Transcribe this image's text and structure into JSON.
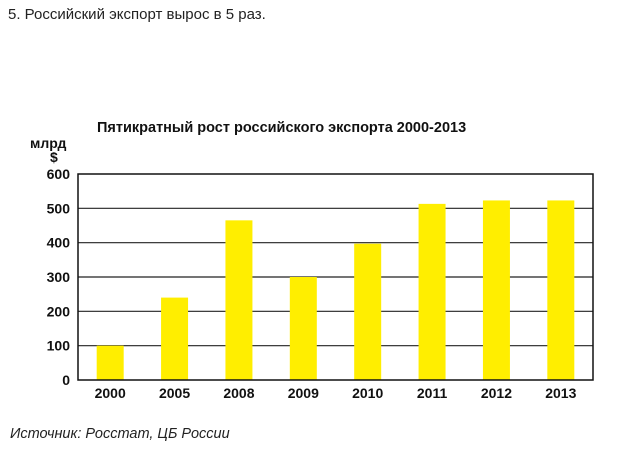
{
  "heading": "5. Российский экспорт вырос в 5 раз.",
  "source": "Источник: Росстат, ЦБ России",
  "chart_data": {
    "type": "bar",
    "title": "Пятикратный рост российского экспорта 2000-2013",
    "ylabel": "млрд $",
    "ylabel_line1": "млрд",
    "ylabel_line2": "$",
    "categories": [
      "2000",
      "2005",
      "2008",
      "2009",
      "2010",
      "2011",
      "2012",
      "2013"
    ],
    "values": [
      100,
      240,
      465,
      300,
      397,
      513,
      523,
      523
    ],
    "ylim": [
      0,
      600
    ],
    "yticks": [
      0,
      100,
      200,
      300,
      400,
      500,
      600
    ],
    "grid": true,
    "bar_color": "#ffee00"
  }
}
